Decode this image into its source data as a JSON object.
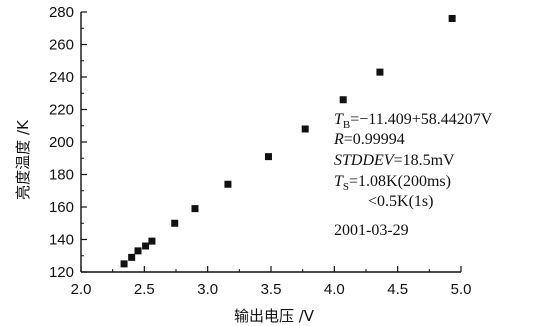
{
  "chart_data": {
    "type": "scatter",
    "title": "",
    "xlabel": "输出电压 /V",
    "ylabel": "亮度温度 /K",
    "xlim": [
      2.0,
      5.0
    ],
    "ylim": [
      120,
      280
    ],
    "xticks": [
      "2.0",
      "2.5",
      "3.0",
      "3.5",
      "4.0",
      "4.5",
      "5.0"
    ],
    "yticks": [
      "120",
      "140",
      "160",
      "180",
      "200",
      "220",
      "240",
      "260",
      "280"
    ],
    "grid": false,
    "marker_color": "#111111",
    "points": [
      {
        "x": 2.34,
        "y": 125
      },
      {
        "x": 2.4,
        "y": 129
      },
      {
        "x": 2.45,
        "y": 133
      },
      {
        "x": 2.51,
        "y": 136
      },
      {
        "x": 2.56,
        "y": 139
      },
      {
        "x": 2.74,
        "y": 150
      },
      {
        "x": 2.9,
        "y": 159
      },
      {
        "x": 3.16,
        "y": 174
      },
      {
        "x": 3.48,
        "y": 191
      },
      {
        "x": 3.77,
        "y": 208
      },
      {
        "x": 4.07,
        "y": 226
      },
      {
        "x": 4.36,
        "y": 243
      },
      {
        "x": 4.93,
        "y": 276
      }
    ],
    "annotations": {
      "eq_var": "T",
      "eq_sub": "B",
      "eq_rest": "=−11.409+58.44207V",
      "r_var": "R",
      "r_rest": "=0.99994",
      "std_var": "STDDEV",
      "std_rest": "=18.5mV",
      "ts_var": "T",
      "ts_sub": "S",
      "ts_rest": "=1.08K(200ms)",
      "ts_line2": "<0.5K(1s)",
      "date": "2001-03-29"
    }
  }
}
